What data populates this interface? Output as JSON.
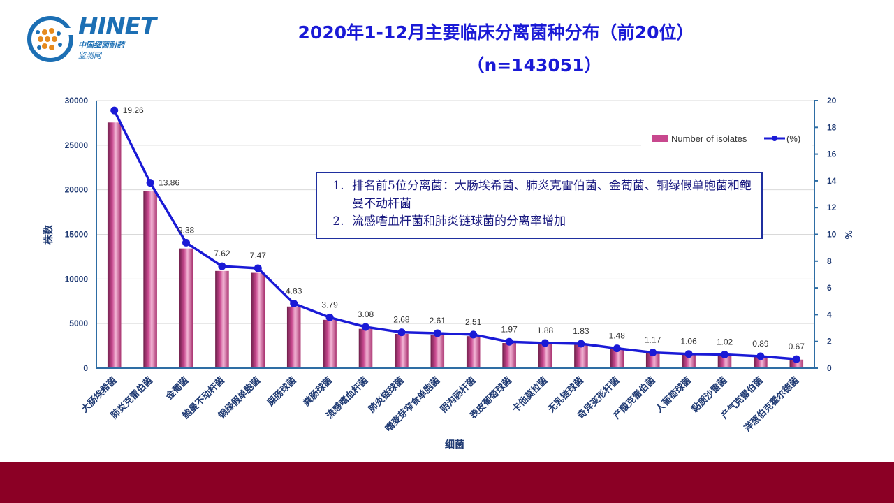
{
  "header": {
    "logo_text": "HINET",
    "logo_sub1": "中国细菌耐药",
    "logo_sub2": "监测网",
    "title": "2020年1-12月主要临床分离菌种分布（前20位）",
    "subtitle": "（n=143051）"
  },
  "note": {
    "items": [
      "排名前5位分离菌：大肠埃希菌、肺炎克雷伯菌、金葡菌、铜绿假单胞菌和鲍曼不动杆菌",
      "流感嗜血杆菌和肺炎链球菌的分离率增加"
    ]
  },
  "colors": {
    "bar": "#c8488e",
    "line": "#1a1ad6",
    "axis": "#2e6da4",
    "footer": "#8b0025"
  },
  "chart_data": {
    "type": "bar",
    "xlabel": "细菌",
    "ylabel": "株数",
    "y2label": "%",
    "ylim": [
      0,
      30000
    ],
    "y2lim": [
      0,
      20
    ],
    "yticks": [
      0,
      5000,
      10000,
      15000,
      20000,
      25000,
      30000
    ],
    "y2ticks": [
      0,
      2,
      4,
      6,
      8,
      10,
      12,
      14,
      16,
      18,
      20
    ],
    "legend_position": "top-right",
    "categories": [
      "大肠埃希菌",
      "肺炎克雷伯菌",
      "金葡菌",
      "鲍曼不动杆菌",
      "铜绿假单胞菌",
      "屎肠球菌",
      "粪肠球菌",
      "流感嗜血杆菌",
      "肺炎链球菌",
      "嗜麦芽窄食单胞菌",
      "阴沟肠杆菌",
      "表皮葡萄球菌",
      "卡他莫拉菌",
      "无乳链球菌",
      "奇异变形杆菌",
      "产酸克雷伯菌",
      "人葡萄球菌",
      "黏质沙雷菌",
      "产气克雷伯菌",
      "洋葱伯克霍尔德菌"
    ],
    "series": [
      {
        "name": "Number of isolates",
        "type": "bar",
        "axis": "left",
        "values": [
          27550,
          19830,
          13420,
          10900,
          10690,
          6910,
          5420,
          4410,
          3840,
          3730,
          3590,
          2820,
          2690,
          2620,
          2120,
          1670,
          1520,
          1460,
          1270,
          960
        ]
      },
      {
        "name": "(%)",
        "type": "line",
        "axis": "right",
        "values": [
          19.26,
          13.86,
          9.38,
          7.62,
          7.47,
          4.83,
          3.79,
          3.08,
          2.68,
          2.61,
          2.51,
          1.97,
          1.88,
          1.83,
          1.48,
          1.17,
          1.06,
          1.02,
          0.89,
          0.67
        ]
      }
    ]
  }
}
